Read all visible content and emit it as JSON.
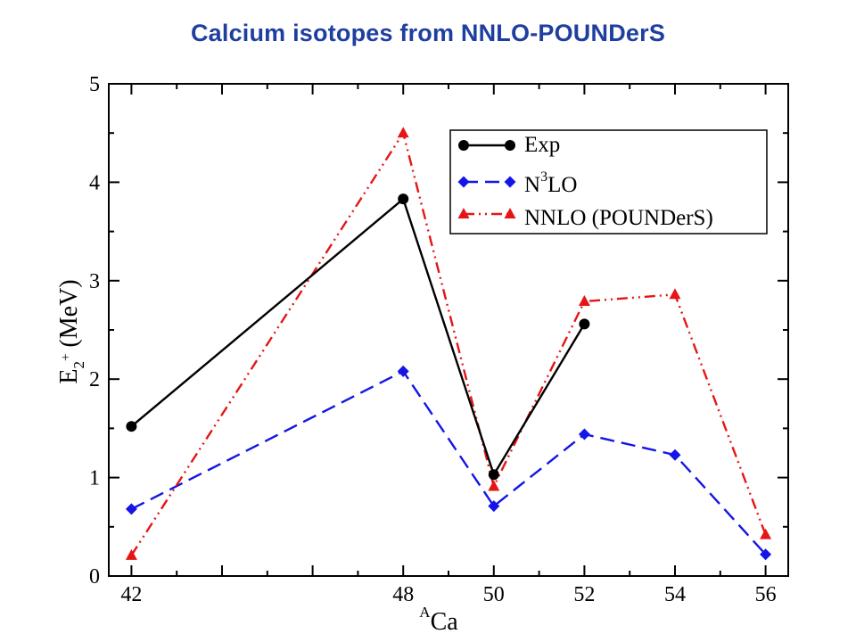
{
  "title": "Calcium isotopes from NNLO-POUNDerS",
  "chart_data": {
    "type": "line",
    "xlabel": {
      "sup": "A",
      "main": "Ca"
    },
    "ylabel": {
      "main": "E",
      "sub": "2",
      "sup": "+",
      "unit": " (MeV)"
    },
    "xlim": [
      41.5,
      56.5
    ],
    "ylim": [
      0,
      5
    ],
    "xticks": [
      42,
      48,
      50,
      52,
      54,
      56
    ],
    "yticks": [
      0,
      1,
      2,
      3,
      4,
      5
    ],
    "grid": false,
    "legend_position": "top-right",
    "series": [
      {
        "name": "Exp",
        "color": "#000000",
        "marker": "circle",
        "dash": "solid",
        "x": [
          42,
          48,
          50,
          52
        ],
        "y": [
          1.52,
          3.83,
          1.03,
          2.56
        ]
      },
      {
        "name": "N3LO",
        "legend": {
          "pre": "N",
          "sup": "3",
          "post": "LO"
        },
        "color": "#1515e6",
        "marker": "diamond",
        "dash": "dashed",
        "x": [
          42,
          48,
          50,
          52,
          54,
          56
        ],
        "y": [
          0.68,
          2.08,
          0.71,
          1.44,
          1.23,
          0.22
        ]
      },
      {
        "name": "NNLO (POUNDerS)",
        "color": "#e61515",
        "marker": "triangle",
        "dash": "dashdotdot",
        "x": [
          42,
          48,
          50,
          52,
          54,
          56
        ],
        "y": [
          0.21,
          4.5,
          0.91,
          2.79,
          2.86,
          0.42
        ]
      }
    ]
  }
}
